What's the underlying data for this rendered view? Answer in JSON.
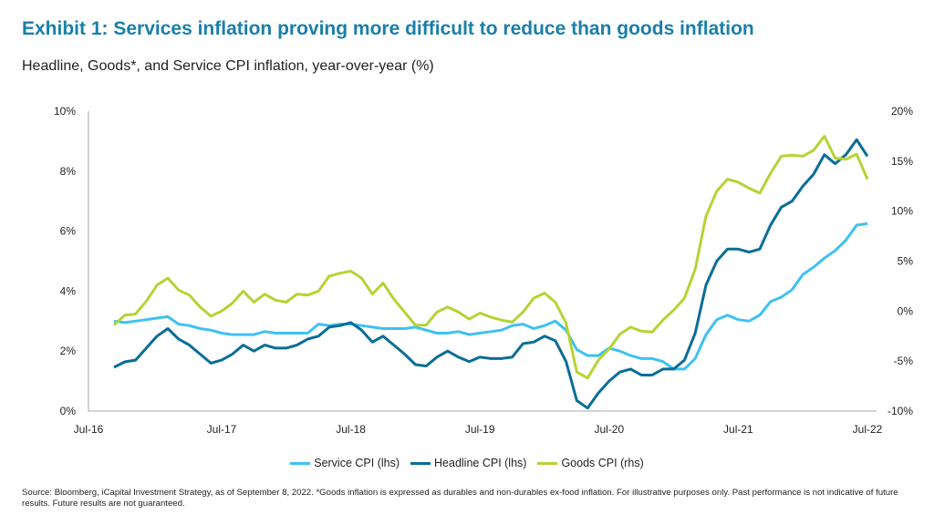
{
  "title": "Exhibit 1: Services inflation proving more difficult to reduce than goods inflation",
  "subtitle": "Headline, Goods*, and Service CPI inflation, year-over-year (%)",
  "source": "Source: Bloomberg, iCapital Investment Strategy, as of September 8, 2022. *Goods inflation is expressed as durables and non-durables ex-food inflation. For illustrative purposes only. Past performance is not indicative of future results. Future results are not guaranteed.",
  "chart_data": {
    "type": "line",
    "x_start": "Sep-16",
    "x_end": "Jul-22",
    "x_frequency": "monthly",
    "x_tick_labels": [
      "Jul-16",
      "Jul-17",
      "Jul-18",
      "Jul-19",
      "Jul-20",
      "Jul-21",
      "Jul-22"
    ],
    "y_left": {
      "range": [
        0,
        10
      ],
      "tick_labels": [
        "0%",
        "2%",
        "4%",
        "6%",
        "8%",
        "10%"
      ]
    },
    "y_right": {
      "range": [
        -10,
        20
      ],
      "tick_labels": [
        "-10%",
        "-5%",
        "0%",
        "5%",
        "10%",
        "15%",
        "20%"
      ]
    },
    "grid": false,
    "legend_placement": "bottom",
    "series": [
      {
        "name": "Service CPI (lhs)",
        "axis": "left",
        "color": "#3ec1f3",
        "values": [
          3.0,
          2.95,
          3.0,
          3.05,
          3.1,
          3.15,
          2.9,
          2.85,
          2.75,
          2.7,
          2.6,
          2.55,
          2.55,
          2.55,
          2.65,
          2.6,
          2.6,
          2.6,
          2.6,
          2.9,
          2.85,
          2.9,
          2.9,
          2.85,
          2.8,
          2.75,
          2.75,
          2.75,
          2.8,
          2.7,
          2.6,
          2.6,
          2.65,
          2.55,
          2.6,
          2.65,
          2.7,
          2.85,
          2.9,
          2.75,
          2.85,
          3.0,
          2.7,
          2.05,
          1.85,
          1.85,
          2.1,
          2.0,
          1.85,
          1.75,
          1.75,
          1.65,
          1.4,
          1.4,
          1.75,
          2.55,
          3.05,
          3.2,
          3.05,
          3.0,
          3.2,
          3.65,
          3.8,
          4.05,
          4.55,
          4.8,
          5.1,
          5.35,
          5.7,
          6.2,
          6.25
        ]
      },
      {
        "name": "Headline CPI (lhs)",
        "axis": "left",
        "color": "#0a6d96",
        "values": [
          1.46,
          1.64,
          1.7,
          2.1,
          2.5,
          2.75,
          2.4,
          2.2,
          1.9,
          1.6,
          1.7,
          1.9,
          2.2,
          2.0,
          2.2,
          2.1,
          2.1,
          2.2,
          2.4,
          2.5,
          2.8,
          2.85,
          2.95,
          2.7,
          2.3,
          2.5,
          2.2,
          1.9,
          1.55,
          1.5,
          1.8,
          2.0,
          1.8,
          1.65,
          1.8,
          1.75,
          1.75,
          1.8,
          2.25,
          2.3,
          2.5,
          2.35,
          1.65,
          0.35,
          0.1,
          0.6,
          1.0,
          1.3,
          1.4,
          1.2,
          1.2,
          1.4,
          1.4,
          1.7,
          2.6,
          4.2,
          5.0,
          5.4,
          5.4,
          5.3,
          5.4,
          6.2,
          6.8,
          7.0,
          7.5,
          7.9,
          8.55,
          8.25,
          8.55,
          9.05,
          8.5
        ]
      },
      {
        "name": "Goods CPI (rhs)",
        "axis": "right",
        "color": "#b5d334",
        "values": [
          -1.4,
          -0.4,
          -0.3,
          1.0,
          2.6,
          3.3,
          2.1,
          1.6,
          0.4,
          -0.5,
          0.0,
          0.8,
          2.0,
          0.9,
          1.7,
          1.1,
          0.9,
          1.7,
          1.6,
          2.0,
          3.5,
          3.8,
          4.0,
          3.3,
          1.7,
          2.8,
          1.2,
          -0.1,
          -1.4,
          -1.4,
          -0.1,
          0.4,
          -0.1,
          -0.8,
          -0.2,
          -0.6,
          -0.9,
          -1.1,
          -0.1,
          1.3,
          1.8,
          0.9,
          -1.2,
          -6.1,
          -6.7,
          -4.9,
          -3.8,
          -2.3,
          -1.6,
          -2.0,
          -2.1,
          -0.9,
          0.1,
          1.3,
          4.2,
          9.5,
          12.0,
          13.2,
          12.9,
          12.3,
          11.8,
          13.8,
          15.5,
          15.6,
          15.5,
          16.1,
          17.5,
          15.3,
          15.2,
          15.7,
          13.2
        ]
      }
    ]
  }
}
